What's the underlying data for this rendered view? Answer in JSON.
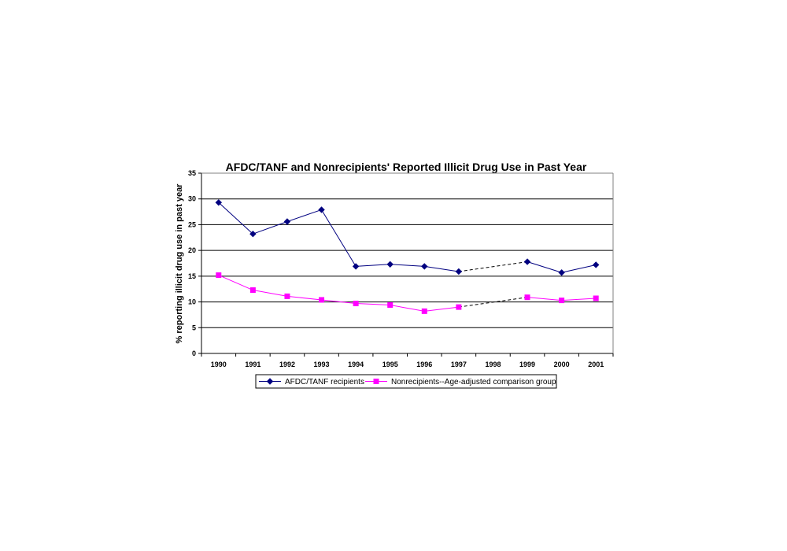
{
  "chart_data": {
    "type": "line",
    "title": "AFDC/TANF  and Nonrecipients' Reported Illicit Drug Use in Past Year",
    "xlabel": "",
    "ylabel": "% reporting illicit drug use in past year",
    "categories": [
      "1990",
      "1991",
      "1992",
      "1993",
      "1994",
      "1995",
      "1996",
      "1997",
      "1998",
      "1999",
      "2000",
      "2001"
    ],
    "ylim": [
      0,
      35
    ],
    "yticks": [
      0,
      5,
      10,
      15,
      20,
      25,
      30,
      35
    ],
    "grid": true,
    "legend_position": "bottom",
    "series": [
      {
        "name": "AFDC/TANF recipients",
        "color": "#000080",
        "marker": "diamond",
        "values": [
          29.3,
          23.2,
          25.6,
          27.9,
          16.9,
          17.3,
          16.9,
          15.9,
          null,
          17.8,
          15.7,
          17.2
        ],
        "dashed_gap": [
          "1997",
          "1999"
        ]
      },
      {
        "name": "Nonrecipients--Age-adjusted comparison group",
        "color": "#ff00ff",
        "marker": "square",
        "values": [
          15.2,
          12.3,
          11.1,
          10.4,
          9.7,
          9.4,
          8.2,
          9.0,
          null,
          10.9,
          10.3,
          10.7
        ],
        "dashed_gap": [
          "1997",
          "1999"
        ]
      }
    ]
  }
}
